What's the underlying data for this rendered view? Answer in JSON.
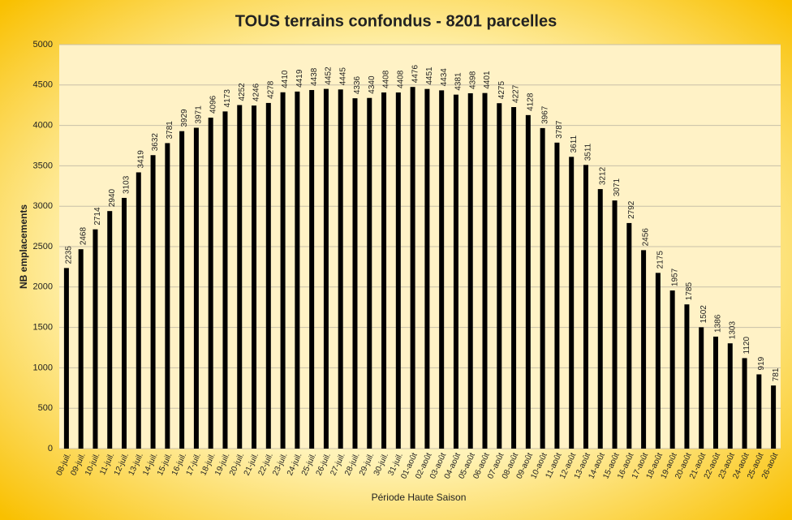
{
  "chart_data": {
    "type": "bar",
    "title": "TOUS terrains confondus - 8201 parcelles",
    "x_label": "Période Haute Saison",
    "y_label": "NB emplacements",
    "categories": [
      "08-juil.",
      "09-juil.",
      "10-juil.",
      "11-juil.",
      "12-juil.",
      "13-juil.",
      "14-juil.",
      "15-juil.",
      "16-juil.",
      "17-juil.",
      "18-juil.",
      "19-juil.",
      "20-juil.",
      "21-juil.",
      "22-juil.",
      "23-juil.",
      "24-juil.",
      "25-juil.",
      "26-juil.",
      "27-juil.",
      "28-juil.",
      "29-juil.",
      "30-juil.",
      "31-juil.",
      "01-août",
      "02-août",
      "03-août",
      "04-août",
      "05-août",
      "06-août",
      "07-août",
      "08-août",
      "09-août",
      "10-août",
      "11-août",
      "12-août",
      "13-août",
      "14-août",
      "15-août",
      "16-août",
      "17-août",
      "18-août",
      "19-août",
      "20-août",
      "21-août",
      "22-août",
      "23-août",
      "24-août",
      "25-août",
      "26-août"
    ],
    "values": [
      2235,
      2468,
      2714,
      2940,
      3103,
      3419,
      3632,
      3781,
      3929,
      3971,
      4096,
      4173,
      4252,
      4246,
      4278,
      4410,
      4419,
      4438,
      4452,
      4445,
      4336,
      4340,
      4408,
      4408,
      4476,
      4451,
      4434,
      4381,
      4398,
      4401,
      4275,
      4227,
      4128,
      3967,
      3787,
      3611,
      3511,
      3212,
      3071,
      2792,
      2456,
      2175,
      1957,
      1785,
      1502,
      1386,
      1303,
      1120,
      919,
      781
    ],
    "color": "#000000",
    "ylim": [
      0,
      5000
    ],
    "yticks": [
      0,
      500,
      1000,
      1500,
      2000,
      2500,
      3000,
      3500,
      4000,
      4500,
      5000
    ],
    "grid": true
  }
}
